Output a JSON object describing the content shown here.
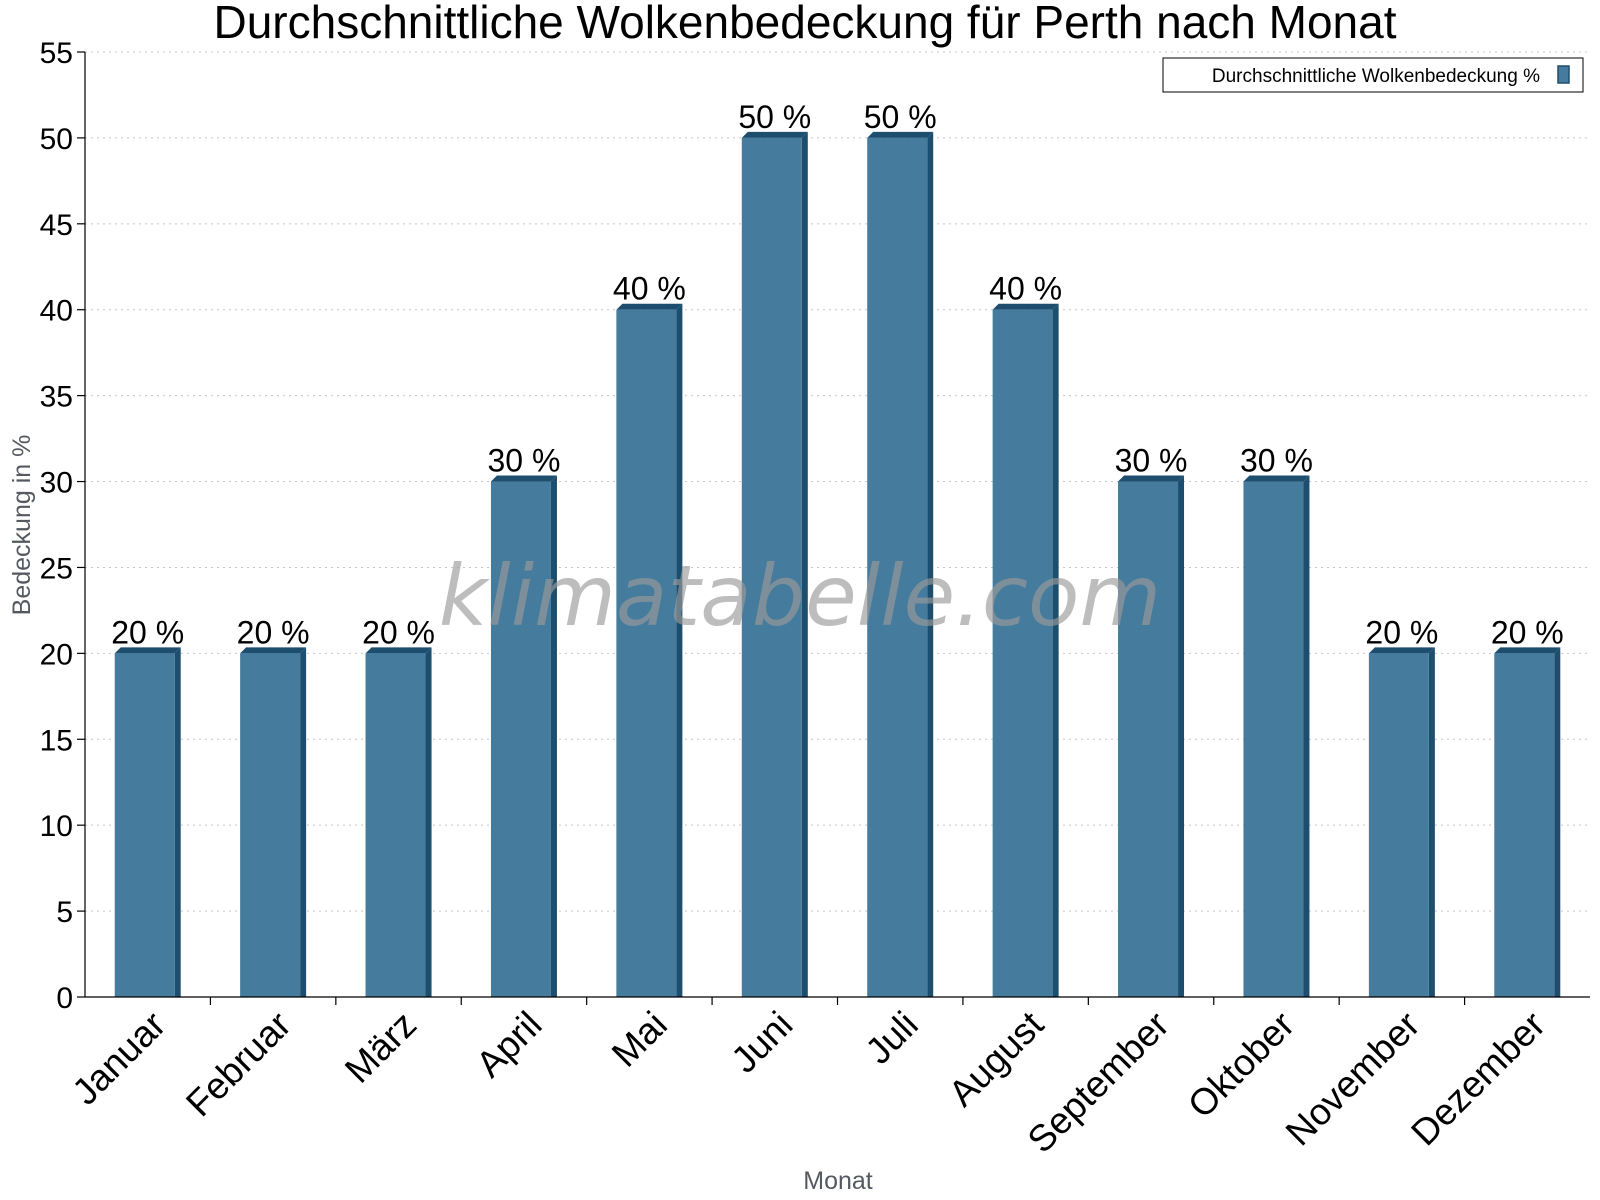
{
  "watermark": "klimatabelle.com",
  "chart_data": {
    "type": "bar",
    "title": "Durchschnittliche Wolkenbedeckung für Perth nach Monat",
    "xlabel": "Monat",
    "ylabel": "Bedeckung in %",
    "ylim": [
      0,
      55
    ],
    "yticks": [
      0,
      5,
      10,
      15,
      20,
      25,
      30,
      35,
      40,
      45,
      50,
      55
    ],
    "grid": true,
    "legend_position": "top-right",
    "categories": [
      "Januar",
      "Februar",
      "März",
      "April",
      "Mai",
      "Juni",
      "Juli",
      "August",
      "September",
      "Oktober",
      "November",
      "Dezember"
    ],
    "series": [
      {
        "name": "Durchschnittliche Wolkenbedeckung %",
        "values": [
          20,
          20,
          20,
          30,
          40,
          50,
          50,
          40,
          30,
          30,
          20,
          20
        ],
        "labels": [
          "20 %",
          "20 %",
          "20 %",
          "30 %",
          "40 %",
          "50 %",
          "50 %",
          "40 %",
          "30 %",
          "30 %",
          "20 %",
          "20 %"
        ],
        "color": "#457b9d",
        "shade_color": "#1d4e6e"
      }
    ]
  }
}
